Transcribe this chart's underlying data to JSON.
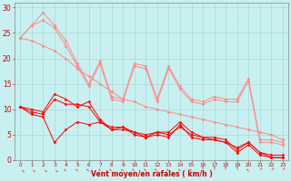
{
  "background_color": "#c8f0f0",
  "grid_color": "#a8d8d8",
  "line_color_dark": "#ff0000",
  "line_color_light": "#ff8888",
  "xlabel": "Vent moyen/en rafales ( km/h )",
  "xlabel_color": "#cc0000",
  "ylabel_ticks": [
    0,
    5,
    10,
    15,
    20,
    25,
    30
  ],
  "xticks": [
    0,
    1,
    2,
    3,
    4,
    5,
    6,
    7,
    8,
    9,
    10,
    11,
    12,
    13,
    14,
    15,
    16,
    17,
    18,
    19,
    20,
    21,
    22,
    23
  ],
  "lines_dark": [
    [
      10.5,
      10.0,
      9.5,
      13.0,
      12.0,
      10.5,
      11.5,
      8.0,
      6.0,
      6.0,
      5.5,
      4.5,
      5.0,
      4.5,
      7.0,
      4.5,
      4.0,
      4.0,
      3.5,
      1.5,
      3.0,
      1.0,
      0.5,
      0.5
    ],
    [
      10.5,
      9.5,
      9.0,
      12.0,
      11.0,
      11.0,
      10.5,
      7.5,
      6.5,
      6.5,
      5.5,
      5.0,
      5.5,
      5.0,
      6.5,
      5.0,
      4.5,
      4.5,
      4.0,
      2.0,
      3.5,
      1.5,
      1.0,
      1.0
    ],
    [
      10.5,
      9.0,
      8.5,
      3.5,
      6.0,
      7.5,
      7.0,
      7.5,
      6.0,
      6.5,
      5.0,
      4.5,
      5.5,
      5.5,
      7.5,
      5.5,
      4.5,
      4.0,
      3.5,
      2.5,
      3.5,
      1.5,
      0.5,
      0.5
    ]
  ],
  "lines_light": [
    [
      24.0,
      26.5,
      29.0,
      26.5,
      23.5,
      19.0,
      15.0,
      19.5,
      12.5,
      12.0,
      19.0,
      18.5,
      12.0,
      18.5,
      14.5,
      12.0,
      11.5,
      12.5,
      12.0,
      12.0,
      16.0,
      4.0,
      4.0,
      3.5
    ],
    [
      24.0,
      26.5,
      27.5,
      26.0,
      22.5,
      18.5,
      14.5,
      19.0,
      12.0,
      11.5,
      18.5,
      18.0,
      11.5,
      18.0,
      14.0,
      11.5,
      11.0,
      12.0,
      11.5,
      11.5,
      15.5,
      3.5,
      3.5,
      3.0
    ],
    [
      24.0,
      23.5,
      22.5,
      21.5,
      20.0,
      18.0,
      16.5,
      15.0,
      13.5,
      12.0,
      11.5,
      10.5,
      10.0,
      9.5,
      9.0,
      8.5,
      8.0,
      7.5,
      7.0,
      6.5,
      6.0,
      5.5,
      5.0,
      4.0
    ]
  ],
  "figsize": [
    3.2,
    2.0
  ],
  "dpi": 100
}
